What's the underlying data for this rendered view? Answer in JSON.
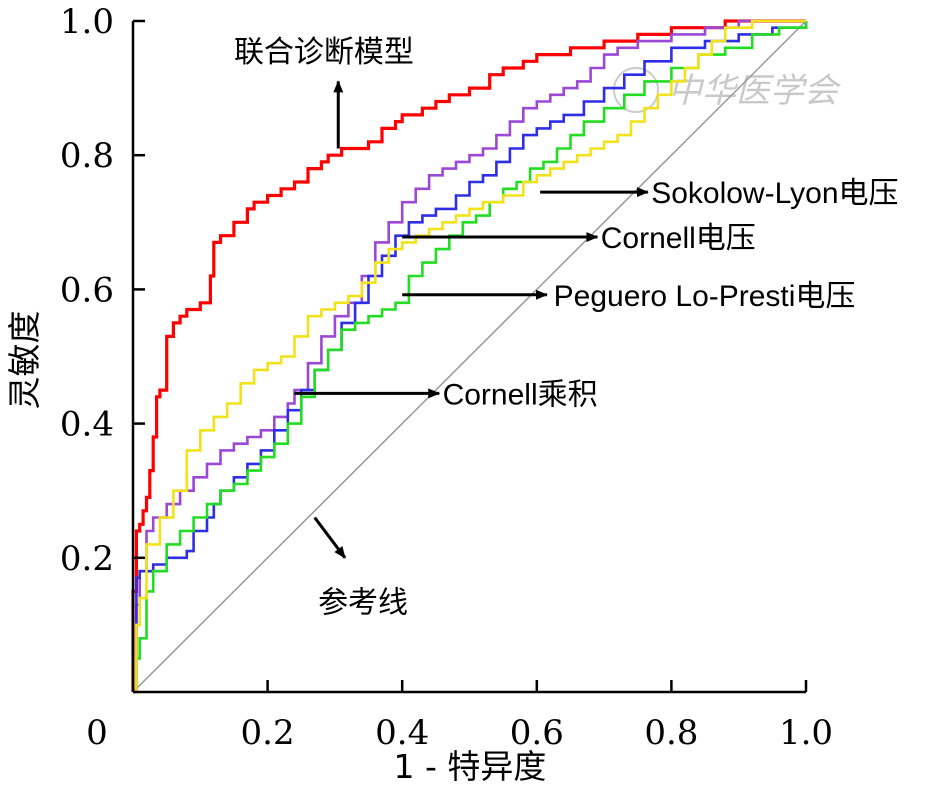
{
  "chart_data": {
    "type": "line",
    "xlabel": "1 - 特异度",
    "ylabel": "灵敏度",
    "xlim": [
      0,
      1
    ],
    "ylim": [
      0,
      1
    ],
    "x_ticks": [
      "0",
      "0.2",
      "0.4",
      "0.6",
      "0.8",
      "1.0"
    ],
    "y_ticks": [
      "0.2",
      "0.4",
      "0.6",
      "0.8",
      "1.0"
    ],
    "grid": false,
    "legend": "none",
    "watermark": "中华医学会",
    "series": [
      {
        "name": "联合诊断模型",
        "color": "#ff0000",
        "points": [
          [
            0,
            0
          ],
          [
            0,
            0.15
          ],
          [
            0.005,
            0.15
          ],
          [
            0.005,
            0.24
          ],
          [
            0.01,
            0.25
          ],
          [
            0.015,
            0.27
          ],
          [
            0.02,
            0.29
          ],
          [
            0.025,
            0.33
          ],
          [
            0.03,
            0.38
          ],
          [
            0.035,
            0.44
          ],
          [
            0.04,
            0.45
          ],
          [
            0.045,
            0.45
          ],
          [
            0.05,
            0.53
          ],
          [
            0.06,
            0.55
          ],
          [
            0.07,
            0.56
          ],
          [
            0.08,
            0.57
          ],
          [
            0.1,
            0.58
          ],
          [
            0.11,
            0.58
          ],
          [
            0.115,
            0.62
          ],
          [
            0.12,
            0.67
          ],
          [
            0.13,
            0.68
          ],
          [
            0.15,
            0.7
          ],
          [
            0.17,
            0.72
          ],
          [
            0.18,
            0.73
          ],
          [
            0.2,
            0.74
          ],
          [
            0.22,
            0.75
          ],
          [
            0.24,
            0.76
          ],
          [
            0.26,
            0.78
          ],
          [
            0.28,
            0.79
          ],
          [
            0.29,
            0.8
          ],
          [
            0.31,
            0.81
          ],
          [
            0.33,
            0.81
          ],
          [
            0.35,
            0.82
          ],
          [
            0.37,
            0.84
          ],
          [
            0.39,
            0.85
          ],
          [
            0.4,
            0.86
          ],
          [
            0.43,
            0.87
          ],
          [
            0.45,
            0.88
          ],
          [
            0.47,
            0.89
          ],
          [
            0.5,
            0.9
          ],
          [
            0.53,
            0.92
          ],
          [
            0.55,
            0.93
          ],
          [
            0.58,
            0.94
          ],
          [
            0.6,
            0.95
          ],
          [
            0.65,
            0.96
          ],
          [
            0.7,
            0.97
          ],
          [
            0.75,
            0.98
          ],
          [
            0.8,
            0.99
          ],
          [
            0.88,
            1.0
          ],
          [
            1.0,
            1.0
          ]
        ]
      },
      {
        "name": "Sokolow-Lyon电压",
        "color": "#9b48d6",
        "points": [
          [
            0,
            0
          ],
          [
            0.005,
            0.13
          ],
          [
            0.01,
            0.18
          ],
          [
            0.02,
            0.24
          ],
          [
            0.03,
            0.26
          ],
          [
            0.05,
            0.28
          ],
          [
            0.07,
            0.3
          ],
          [
            0.09,
            0.32
          ],
          [
            0.11,
            0.34
          ],
          [
            0.13,
            0.36
          ],
          [
            0.15,
            0.37
          ],
          [
            0.17,
            0.38
          ],
          [
            0.19,
            0.39
          ],
          [
            0.21,
            0.41
          ],
          [
            0.23,
            0.43
          ],
          [
            0.24,
            0.45
          ],
          [
            0.26,
            0.49
          ],
          [
            0.28,
            0.53
          ],
          [
            0.3,
            0.56
          ],
          [
            0.32,
            0.58
          ],
          [
            0.34,
            0.62
          ],
          [
            0.36,
            0.67
          ],
          [
            0.38,
            0.7
          ],
          [
            0.4,
            0.73
          ],
          [
            0.42,
            0.75
          ],
          [
            0.44,
            0.77
          ],
          [
            0.46,
            0.78
          ],
          [
            0.48,
            0.79
          ],
          [
            0.5,
            0.8
          ],
          [
            0.52,
            0.81
          ],
          [
            0.54,
            0.83
          ],
          [
            0.56,
            0.85
          ],
          [
            0.58,
            0.87
          ],
          [
            0.6,
            0.88
          ],
          [
            0.62,
            0.89
          ],
          [
            0.64,
            0.9
          ],
          [
            0.66,
            0.91
          ],
          [
            0.68,
            0.93
          ],
          [
            0.7,
            0.95
          ],
          [
            0.72,
            0.96
          ],
          [
            0.75,
            0.97
          ],
          [
            0.8,
            0.98
          ],
          [
            0.85,
            0.99
          ],
          [
            0.9,
            1.0
          ],
          [
            1.0,
            1.0
          ]
        ]
      },
      {
        "name": "Cornell电压",
        "color": "#2e2ee6",
        "points": [
          [
            0,
            0
          ],
          [
            0.005,
            0.17
          ],
          [
            0.01,
            0.18
          ],
          [
            0.03,
            0.19
          ],
          [
            0.05,
            0.2
          ],
          [
            0.08,
            0.21
          ],
          [
            0.09,
            0.24
          ],
          [
            0.11,
            0.26
          ],
          [
            0.12,
            0.28
          ],
          [
            0.13,
            0.3
          ],
          [
            0.15,
            0.32
          ],
          [
            0.17,
            0.34
          ],
          [
            0.19,
            0.36
          ],
          [
            0.21,
            0.39
          ],
          [
            0.23,
            0.42
          ],
          [
            0.25,
            0.45
          ],
          [
            0.27,
            0.48
          ],
          [
            0.29,
            0.51
          ],
          [
            0.31,
            0.55
          ],
          [
            0.33,
            0.58
          ],
          [
            0.35,
            0.62
          ],
          [
            0.37,
            0.65
          ],
          [
            0.39,
            0.68
          ],
          [
            0.41,
            0.7
          ],
          [
            0.43,
            0.71
          ],
          [
            0.45,
            0.72
          ],
          [
            0.48,
            0.74
          ],
          [
            0.5,
            0.76
          ],
          [
            0.52,
            0.77
          ],
          [
            0.54,
            0.79
          ],
          [
            0.56,
            0.81
          ],
          [
            0.58,
            0.83
          ],
          [
            0.6,
            0.84
          ],
          [
            0.62,
            0.85
          ],
          [
            0.64,
            0.86
          ],
          [
            0.67,
            0.88
          ],
          [
            0.7,
            0.9
          ],
          [
            0.73,
            0.92
          ],
          [
            0.76,
            0.94
          ],
          [
            0.8,
            0.96
          ],
          [
            0.85,
            0.97
          ],
          [
            0.9,
            0.98
          ],
          [
            0.95,
            0.99
          ],
          [
            1.0,
            1.0
          ]
        ]
      },
      {
        "name": "Peguero Lo-Presti电压",
        "color": "#22dd22",
        "points": [
          [
            0,
            0
          ],
          [
            0.005,
            0.05
          ],
          [
            0.01,
            0.08
          ],
          [
            0.02,
            0.15
          ],
          [
            0.03,
            0.18
          ],
          [
            0.05,
            0.22
          ],
          [
            0.07,
            0.24
          ],
          [
            0.09,
            0.26
          ],
          [
            0.11,
            0.28
          ],
          [
            0.13,
            0.3
          ],
          [
            0.15,
            0.31
          ],
          [
            0.17,
            0.33
          ],
          [
            0.19,
            0.35
          ],
          [
            0.21,
            0.37
          ],
          [
            0.23,
            0.4
          ],
          [
            0.25,
            0.44
          ],
          [
            0.27,
            0.48
          ],
          [
            0.29,
            0.51
          ],
          [
            0.31,
            0.54
          ],
          [
            0.33,
            0.55
          ],
          [
            0.35,
            0.56
          ],
          [
            0.37,
            0.57
          ],
          [
            0.39,
            0.58
          ],
          [
            0.41,
            0.62
          ],
          [
            0.43,
            0.64
          ],
          [
            0.45,
            0.66
          ],
          [
            0.47,
            0.68
          ],
          [
            0.49,
            0.7
          ],
          [
            0.51,
            0.71
          ],
          [
            0.53,
            0.73
          ],
          [
            0.55,
            0.75
          ],
          [
            0.57,
            0.76
          ],
          [
            0.59,
            0.78
          ],
          [
            0.61,
            0.79
          ],
          [
            0.63,
            0.81
          ],
          [
            0.65,
            0.83
          ],
          [
            0.67,
            0.85
          ],
          [
            0.7,
            0.87
          ],
          [
            0.73,
            0.89
          ],
          [
            0.76,
            0.91
          ],
          [
            0.8,
            0.93
          ],
          [
            0.84,
            0.95
          ],
          [
            0.88,
            0.96
          ],
          [
            0.92,
            0.98
          ],
          [
            0.96,
            0.99
          ],
          [
            1.0,
            1.0
          ]
        ]
      },
      {
        "name": "Cornell乘积",
        "color": "#f2e21a",
        "points": [
          [
            0,
            0
          ],
          [
            0.005,
            0.1
          ],
          [
            0.01,
            0.14
          ],
          [
            0.02,
            0.22
          ],
          [
            0.04,
            0.26
          ],
          [
            0.06,
            0.3
          ],
          [
            0.08,
            0.36
          ],
          [
            0.1,
            0.39
          ],
          [
            0.12,
            0.41
          ],
          [
            0.14,
            0.43
          ],
          [
            0.16,
            0.46
          ],
          [
            0.18,
            0.48
          ],
          [
            0.2,
            0.49
          ],
          [
            0.22,
            0.5
          ],
          [
            0.24,
            0.53
          ],
          [
            0.26,
            0.56
          ],
          [
            0.28,
            0.57
          ],
          [
            0.3,
            0.58
          ],
          [
            0.32,
            0.59
          ],
          [
            0.34,
            0.61
          ],
          [
            0.36,
            0.64
          ],
          [
            0.38,
            0.66
          ],
          [
            0.4,
            0.67
          ],
          [
            0.42,
            0.68
          ],
          [
            0.44,
            0.69
          ],
          [
            0.46,
            0.7
          ],
          [
            0.48,
            0.71
          ],
          [
            0.5,
            0.72
          ],
          [
            0.52,
            0.73
          ],
          [
            0.55,
            0.74
          ],
          [
            0.58,
            0.76
          ],
          [
            0.6,
            0.77
          ],
          [
            0.62,
            0.78
          ],
          [
            0.64,
            0.79
          ],
          [
            0.66,
            0.8
          ],
          [
            0.68,
            0.81
          ],
          [
            0.7,
            0.82
          ],
          [
            0.72,
            0.83
          ],
          [
            0.74,
            0.85
          ],
          [
            0.76,
            0.87
          ],
          [
            0.78,
            0.89
          ],
          [
            0.8,
            0.91
          ],
          [
            0.82,
            0.93
          ],
          [
            0.84,
            0.95
          ],
          [
            0.86,
            0.97
          ],
          [
            0.88,
            0.99
          ],
          [
            0.92,
            1.0
          ],
          [
            1.0,
            1.0
          ]
        ]
      },
      {
        "name": "参考线",
        "color": "#999999",
        "points": [
          [
            0,
            0
          ],
          [
            1,
            1
          ]
        ]
      }
    ],
    "annotations": [
      {
        "text": "联合诊断模型",
        "series": "联合诊断模型",
        "arrow_from": [
          0.305,
          0.81
        ],
        "arrow_to": [
          0.305,
          0.91
        ],
        "text_at": [
          0.15,
          0.955
        ]
      },
      {
        "text": "Sokolow-Lyon电压",
        "series": "Sokolow-Lyon电压",
        "arrow_from": [
          0.605,
          0.745
        ],
        "arrow_to": [
          0.765,
          0.745
        ],
        "text_at": [
          0.77,
          0.745
        ]
      },
      {
        "text": "Cornell电压",
        "series": "Cornell电压",
        "arrow_from": [
          0.4,
          0.678
        ],
        "arrow_to": [
          0.69,
          0.678
        ],
        "text_at": [
          0.695,
          0.678
        ]
      },
      {
        "text": "Peguero Lo-Presti电压",
        "series": "Peguero Lo-Presti电压",
        "arrow_from": [
          0.4,
          0.592
        ],
        "arrow_to": [
          0.615,
          0.592
        ],
        "text_at": [
          0.625,
          0.592
        ]
      },
      {
        "text": "Cornell乘积",
        "series": "Cornell乘积",
        "arrow_from": [
          0.24,
          0.445
        ],
        "arrow_to": [
          0.455,
          0.445
        ],
        "text_at": [
          0.46,
          0.445
        ]
      },
      {
        "text": "参考线",
        "series": "参考线",
        "arrow_from": [
          0.27,
          0.26
        ],
        "arrow_to": [
          0.315,
          0.2
        ],
        "text_at": [
          0.275,
          0.135
        ]
      }
    ]
  }
}
